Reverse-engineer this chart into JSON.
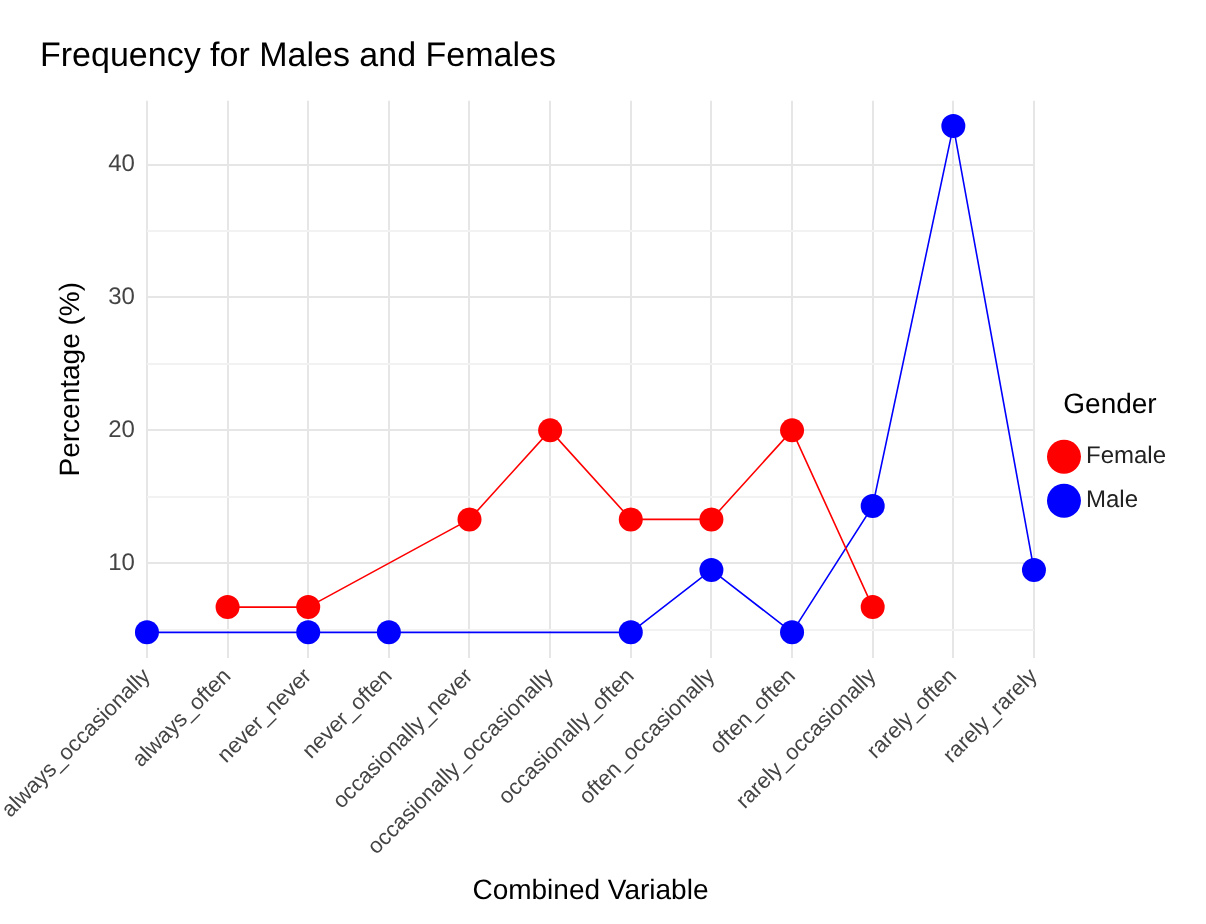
{
  "chart_data": {
    "type": "line",
    "title": "Frequency for Males and Females",
    "xlabel": "Combined Variable",
    "ylabel": "Percentage (%)",
    "legend_title": "Gender",
    "categories": [
      "always_occasionally",
      "always_often",
      "never_never",
      "never_often",
      "occasionally_never",
      "occasionally_occasionally",
      "occasionally_often",
      "often_occasionally",
      "often_often",
      "rarely_occasionally",
      "rarely_often",
      "rarely_rarely"
    ],
    "series": [
      {
        "name": "Female",
        "color": "#ff0000",
        "values": [
          null,
          6.7,
          6.7,
          null,
          13.3,
          20,
          13.3,
          13.3,
          20,
          6.7,
          null,
          null
        ]
      },
      {
        "name": "Male",
        "color": "#0000ff",
        "values": [
          4.8,
          null,
          4.8,
          4.8,
          null,
          null,
          4.8,
          9.5,
          4.8,
          14.3,
          42.9,
          9.5
        ]
      }
    ],
    "ylim": [
      2.9,
      44.8
    ],
    "yticks": [
      {
        "value": 5,
        "label": null
      },
      10,
      {
        "value": 15,
        "label": null
      },
      20,
      {
        "value": 25,
        "label": null
      },
      30,
      {
        "value": 35,
        "label": null
      },
      40
    ],
    "grid": true,
    "legend": "right",
    "marker": "circle",
    "line_style": "solid"
  }
}
